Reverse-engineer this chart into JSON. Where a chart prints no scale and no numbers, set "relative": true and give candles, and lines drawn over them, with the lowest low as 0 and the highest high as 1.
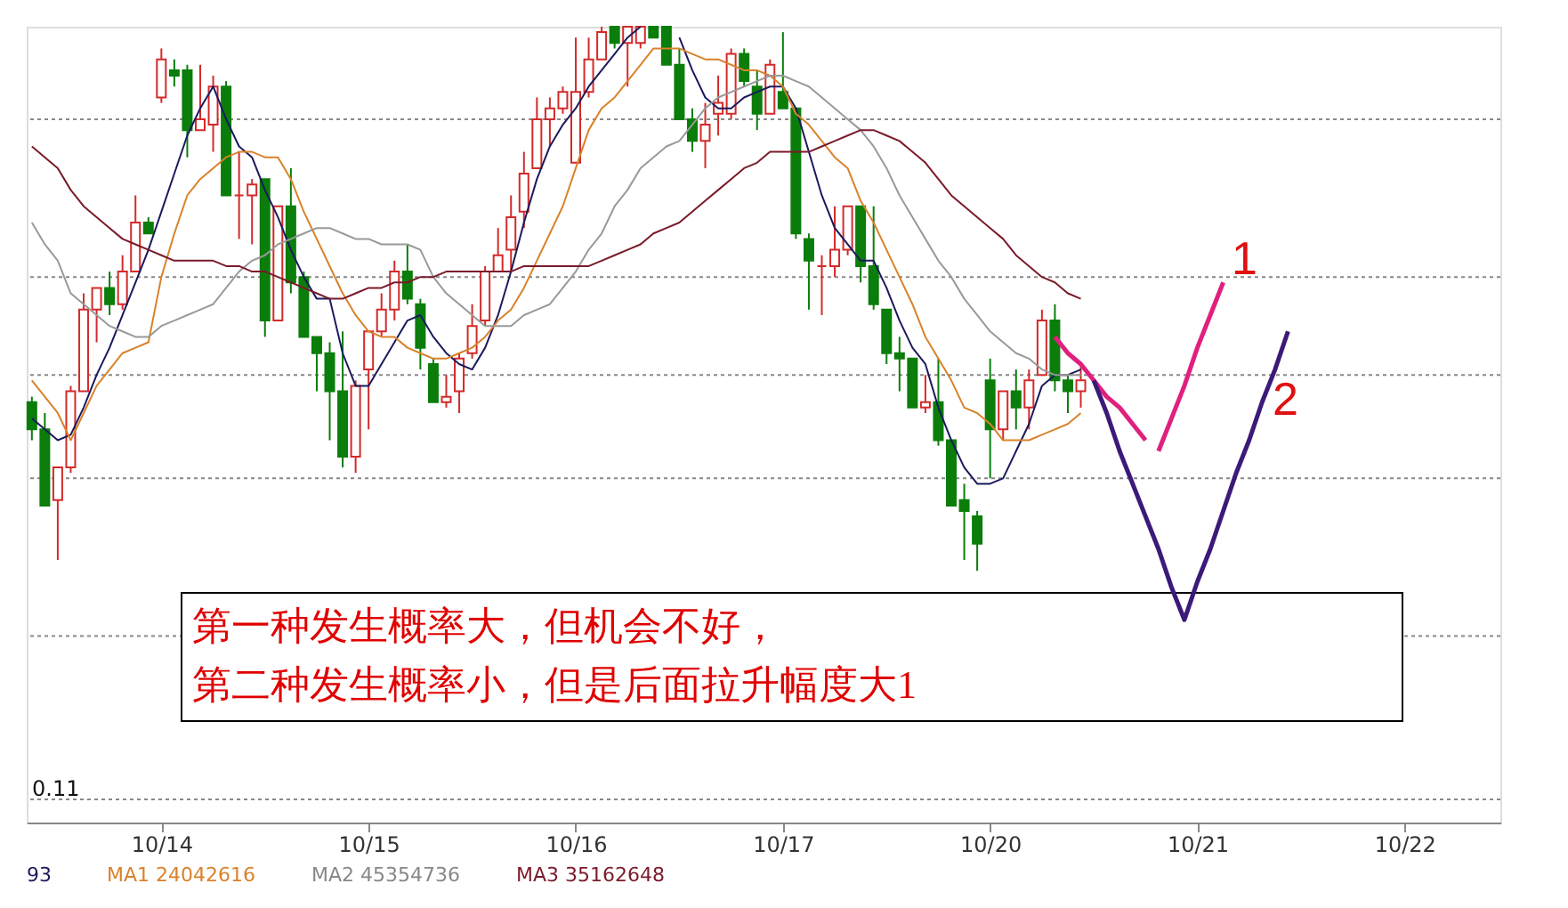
{
  "chart_data": {
    "type": "candlestick",
    "relative": true,
    "grid": false,
    "categories": [
      null,
      null,
      null,
      null,
      null,
      null,
      null,
      null,
      null,
      null,
      "10/14",
      null,
      null,
      null,
      null,
      null,
      null,
      null,
      null,
      null,
      null,
      null,
      null,
      null,
      null,
      null,
      "10/15",
      null,
      null,
      null,
      null,
      null,
      null,
      null,
      null,
      null,
      null,
      null,
      null,
      null,
      null,
      null,
      "10/16",
      null,
      null,
      null,
      null,
      null,
      null,
      null,
      null,
      null,
      null,
      null,
      null,
      null,
      null,
      null,
      "10/17",
      null,
      null,
      null,
      null,
      null,
      null,
      null,
      null,
      null,
      null,
      null,
      null,
      null,
      null,
      null,
      "10/20",
      null,
      null,
      null,
      null,
      null,
      null,
      null,
      null,
      null,
      null,
      null,
      null,
      null,
      null,
      null,
      "10/21",
      null,
      null,
      null,
      null,
      null,
      null,
      null,
      null,
      null,
      null,
      null,
      null,
      null,
      null,
      null,
      "10/22",
      null,
      null,
      null,
      null,
      null,
      null,
      null
    ],
    "ohlc": [
      [
        0.31,
        0.32,
        0.24,
        0.26
      ],
      [
        0.26,
        0.29,
        0.12,
        0.12
      ],
      [
        0.13,
        0.19,
        0.02,
        0.19
      ],
      [
        0.19,
        0.34,
        0.18,
        0.33
      ],
      [
        0.33,
        0.51,
        0.33,
        0.48
      ],
      [
        0.48,
        0.52,
        0.42,
        0.52
      ],
      [
        0.52,
        0.55,
        0.47,
        0.49
      ],
      [
        0.49,
        0.58,
        0.48,
        0.55
      ],
      [
        0.55,
        0.69,
        0.55,
        0.64
      ],
      [
        0.64,
        0.65,
        0.62,
        0.62
      ],
      [
        0.87,
        0.96,
        0.86,
        0.94
      ],
      [
        0.92,
        0.94,
        0.89,
        0.91
      ],
      [
        0.92,
        0.93,
        0.76,
        0.81
      ],
      [
        0.81,
        0.93,
        0.81,
        0.83
      ],
      [
        0.82,
        0.91,
        0.77,
        0.89
      ],
      [
        0.89,
        0.9,
        0.69,
        0.69
      ],
      [
        0.69,
        0.77,
        0.61,
        0.69
      ],
      [
        0.69,
        0.72,
        0.6,
        0.71
      ],
      [
        0.72,
        0.72,
        0.43,
        0.46
      ],
      [
        0.46,
        0.67,
        0.46,
        0.67
      ],
      [
        0.67,
        0.74,
        0.51,
        0.53
      ],
      [
        0.54,
        0.55,
        0.43,
        0.43
      ],
      [
        0.43,
        0.43,
        0.33,
        0.4
      ],
      [
        0.4,
        0.42,
        0.24,
        0.33
      ],
      [
        0.33,
        0.44,
        0.19,
        0.21
      ],
      [
        0.21,
        0.35,
        0.18,
        0.34
      ],
      [
        0.37,
        0.44,
        0.26,
        0.44
      ],
      [
        0.44,
        0.51,
        0.43,
        0.48
      ],
      [
        0.48,
        0.57,
        0.46,
        0.55
      ],
      [
        0.55,
        0.6,
        0.49,
        0.5
      ],
      [
        0.49,
        0.5,
        0.37,
        0.41
      ],
      [
        0.38,
        0.39,
        0.31,
        0.31
      ],
      [
        0.31,
        0.36,
        0.3,
        0.32
      ],
      [
        0.33,
        0.4,
        0.29,
        0.39
      ],
      [
        0.4,
        0.49,
        0.39,
        0.45
      ],
      [
        0.46,
        0.56,
        0.45,
        0.55
      ],
      [
        0.55,
        0.63,
        0.55,
        0.58
      ],
      [
        0.59,
        0.69,
        0.55,
        0.65
      ],
      [
        0.66,
        0.77,
        0.63,
        0.73
      ],
      [
        0.74,
        0.87,
        0.74,
        0.83
      ],
      [
        0.83,
        0.87,
        0.78,
        0.85
      ],
      [
        0.85,
        0.89,
        0.84,
        0.88
      ],
      [
        0.75,
        0.98,
        0.75,
        0.88
      ],
      [
        0.88,
        0.98,
        0.87,
        0.94
      ],
      [
        0.94,
        1.0,
        0.94,
        0.99
      ],
      [
        1.0,
        1.0,
        0.96,
        0.97
      ],
      [
        0.97,
        1.0,
        0.89,
        1.0
      ],
      [
        0.97,
        1.0,
        0.96,
        1.0
      ],
      [
        1.0,
        1.0,
        0.98,
        0.98
      ],
      [
        1.0,
        1.0,
        0.93,
        0.93
      ],
      [
        0.93,
        0.96,
        0.83,
        0.83
      ],
      [
        0.83,
        0.85,
        0.77,
        0.79
      ],
      [
        0.79,
        0.86,
        0.74,
        0.82
      ],
      [
        0.84,
        0.91,
        0.8,
        0.86
      ],
      [
        0.84,
        0.96,
        0.83,
        0.95
      ],
      [
        0.95,
        0.96,
        0.89,
        0.9
      ],
      [
        0.89,
        0.92,
        0.81,
        0.84
      ],
      [
        0.84,
        0.94,
        0.84,
        0.93
      ],
      [
        0.88,
        0.99,
        0.85,
        0.85
      ],
      [
        0.85,
        0.85,
        0.61,
        0.62
      ],
      [
        0.61,
        0.62,
        0.48,
        0.57
      ],
      [
        0.56,
        0.58,
        0.47,
        0.56
      ],
      [
        0.56,
        0.67,
        0.54,
        0.59
      ],
      [
        0.59,
        0.67,
        0.58,
        0.67
      ],
      [
        0.67,
        0.67,
        0.53,
        0.56
      ],
      [
        0.56,
        0.67,
        0.48,
        0.49
      ],
      [
        0.48,
        0.48,
        0.38,
        0.4
      ],
      [
        0.4,
        0.43,
        0.33,
        0.39
      ],
      [
        0.39,
        0.39,
        0.3,
        0.3
      ],
      [
        0.3,
        0.36,
        0.29,
        0.31
      ],
      [
        0.31,
        0.39,
        0.23,
        0.24
      ],
      [
        0.24,
        0.24,
        0.12,
        0.12
      ],
      [
        0.13,
        0.16,
        0.02,
        0.11
      ],
      [
        0.1,
        0.11,
        0.0,
        0.05
      ],
      [
        0.35,
        0.39,
        0.17,
        0.26
      ],
      [
        0.26,
        0.33,
        0.24,
        0.33
      ],
      [
        0.33,
        0.37,
        0.26,
        0.3
      ],
      [
        0.3,
        0.37,
        0.26,
        0.35
      ],
      [
        0.36,
        0.48,
        0.36,
        0.46
      ],
      [
        0.46,
        0.49,
        0.33,
        0.35
      ],
      [
        0.35,
        0.36,
        0.29,
        0.33
      ],
      [
        0.33,
        0.38,
        0.3,
        0.35
      ],
      null,
      null,
      null,
      null,
      null,
      null,
      null,
      null,
      null,
      null,
      null,
      null,
      null,
      null,
      null,
      null,
      null,
      null,
      null,
      null,
      null,
      null,
      null,
      null,
      null,
      null,
      null,
      null,
      null,
      null,
      null,
      null
    ],
    "colors": [
      "#0a7d0a",
      "#0a7d0a",
      "#d42a2a",
      "#d42a2a",
      "#d42a2a",
      "#d42a2a",
      "#0a7d0a",
      "#d42a2a",
      "#d42a2a",
      "#0a7d0a",
      "#d42a2a",
      "#0a7d0a",
      "#0a7d0a",
      "#d42a2a",
      "#d42a2a",
      "#0a7d0a",
      "#d42a2a",
      "#d42a2a",
      "#0a7d0a",
      "#d42a2a",
      "#0a7d0a",
      "#0a7d0a",
      "#0a7d0a",
      "#0a7d0a",
      "#0a7d0a",
      "#d42a2a",
      "#d42a2a",
      "#d42a2a",
      "#d42a2a",
      "#0a7d0a",
      "#0a7d0a",
      "#0a7d0a",
      "#d42a2a",
      "#d42a2a",
      "#d42a2a",
      "#d42a2a",
      "#d42a2a",
      "#d42a2a",
      "#d42a2a",
      "#d42a2a",
      "#d42a2a",
      "#d42a2a",
      "#d42a2a",
      "#d42a2a",
      "#d42a2a",
      "#0a7d0a",
      "#d42a2a",
      "#d42a2a",
      "#0a7d0a",
      "#0a7d0a",
      "#0a7d0a",
      "#0a7d0a",
      "#d42a2a",
      "#d42a2a",
      "#d42a2a",
      "#0a7d0a",
      "#0a7d0a",
      "#d42a2a",
      "#0a7d0a",
      "#0a7d0a",
      "#0a7d0a",
      "#d42a2a",
      "#d42a2a",
      "#d42a2a",
      "#0a7d0a",
      "#0a7d0a",
      "#0a7d0a",
      "#0a7d0a",
      "#0a7d0a",
      "#d42a2a",
      "#0a7d0a",
      "#0a7d0a",
      "#0a7d0a",
      "#0a7d0a",
      "#0a7d0a",
      "#d42a2a",
      "#0a7d0a",
      "#d42a2a",
      "#d42a2a",
      "#0a7d0a",
      "#0a7d0a",
      "#d42a2a",
      null,
      null,
      null,
      null,
      null,
      null,
      null,
      null,
      null,
      null,
      null,
      null,
      null,
      null,
      null,
      null,
      null,
      null,
      null,
      null,
      null,
      null,
      null,
      null,
      null,
      null,
      null,
      null,
      null,
      null,
      null,
      null
    ],
    "series": [
      {
        "type": "line",
        "color": "#1a1a5e",
        "values": [
          0.28,
          0.26,
          0.24,
          0.25,
          0.3,
          0.36,
          0.41,
          0.47,
          0.53,
          0.59,
          0.66,
          0.73,
          0.8,
          0.85,
          0.89,
          0.83,
          0.78,
          0.76,
          0.7,
          0.65,
          0.59,
          0.54,
          0.5,
          0.5,
          0.4,
          0.34,
          0.34,
          0.38,
          0.42,
          0.46,
          0.47,
          0.43,
          0.4,
          0.38,
          0.37,
          0.41,
          0.47,
          0.55,
          0.64,
          0.72,
          0.78,
          0.82,
          0.85,
          0.89,
          0.92,
          0.95,
          0.98,
          1.0,
          null,
          null,
          0.98,
          0.92,
          0.87,
          0.85,
          0.85,
          0.87,
          0.88,
          0.89,
          0.89,
          0.85,
          0.77,
          0.69,
          0.63,
          0.6,
          0.57,
          0.57,
          0.52,
          0.46,
          0.41,
          0.38,
          0.3,
          0.24,
          0.19,
          0.16,
          0.16,
          0.17,
          0.22,
          0.27,
          0.34,
          0.36,
          0.36,
          0.37,
          null,
          null,
          null,
          null,
          null,
          null,
          null,
          null,
          null,
          null,
          null,
          null,
          null,
          null,
          null,
          null,
          null,
          null,
          null,
          null,
          null,
          null,
          null,
          null,
          null,
          null,
          null,
          null,
          null,
          null,
          null,
          null
        ]
      },
      {
        "type": "line",
        "color": "#d9822b",
        "values": [
          0.35,
          0.32,
          0.29,
          0.24,
          0.29,
          0.34,
          0.37,
          0.4,
          0.41,
          0.42,
          0.54,
          0.62,
          0.69,
          0.72,
          0.74,
          0.76,
          0.77,
          0.77,
          0.76,
          0.76,
          0.72,
          0.66,
          0.61,
          0.56,
          0.51,
          0.47,
          0.44,
          0.43,
          0.43,
          0.41,
          0.4,
          0.39,
          0.39,
          0.4,
          0.41,
          0.43,
          0.46,
          0.48,
          0.52,
          0.57,
          0.62,
          0.67,
          0.74,
          0.81,
          0.85,
          0.87,
          0.9,
          0.93,
          0.96,
          0.96,
          0.96,
          0.95,
          0.94,
          0.94,
          0.93,
          0.92,
          0.92,
          0.91,
          0.89,
          0.84,
          0.82,
          0.79,
          0.76,
          0.74,
          0.68,
          0.64,
          0.59,
          0.54,
          0.49,
          0.43,
          0.39,
          0.35,
          0.3,
          0.29,
          0.27,
          0.24,
          0.24,
          0.24,
          0.25,
          0.26,
          0.27,
          0.29,
          null,
          null,
          null,
          null,
          null,
          null,
          null,
          null,
          null,
          null,
          null,
          null,
          null,
          null,
          null,
          null,
          null,
          null,
          null,
          null,
          null,
          null,
          null,
          null,
          null,
          null,
          null,
          null,
          null,
          null,
          null,
          null
        ]
      },
      {
        "type": "line",
        "color": "#999999",
        "values": [
          0.64,
          0.6,
          0.57,
          0.51,
          0.49,
          0.47,
          0.45,
          0.44,
          0.43,
          0.43,
          0.45,
          0.46,
          0.47,
          0.48,
          0.49,
          0.52,
          0.55,
          0.57,
          0.58,
          0.6,
          0.61,
          0.62,
          0.63,
          0.63,
          0.62,
          0.61,
          0.61,
          0.6,
          0.6,
          0.6,
          0.59,
          0.54,
          0.51,
          0.49,
          0.47,
          0.45,
          0.45,
          0.45,
          0.47,
          0.48,
          0.49,
          0.52,
          0.55,
          0.59,
          0.62,
          0.67,
          0.7,
          0.74,
          0.76,
          0.78,
          0.79,
          0.82,
          0.85,
          0.87,
          0.88,
          0.89,
          0.9,
          0.91,
          0.91,
          0.9,
          0.89,
          0.87,
          0.85,
          0.83,
          0.81,
          0.78,
          0.74,
          0.69,
          0.65,
          0.61,
          0.57,
          0.54,
          0.5,
          0.47,
          0.44,
          0.42,
          0.4,
          0.39,
          0.37,
          0.36,
          0.36,
          0.36,
          null,
          null,
          null,
          null,
          null,
          null,
          null,
          null,
          null,
          null,
          null,
          null,
          null,
          null,
          null,
          null,
          null,
          null,
          null,
          null,
          null,
          null,
          null,
          null,
          null,
          null,
          null,
          null,
          null,
          null,
          null,
          null
        ]
      },
      {
        "type": "line",
        "color": "#7a1a2a",
        "values": [
          0.78,
          0.76,
          0.74,
          0.7,
          0.67,
          0.65,
          0.63,
          0.61,
          0.6,
          0.59,
          0.58,
          0.57,
          0.57,
          0.57,
          0.57,
          0.56,
          0.56,
          0.55,
          0.55,
          0.54,
          0.53,
          0.52,
          0.51,
          0.5,
          0.5,
          0.51,
          0.52,
          0.52,
          0.53,
          0.53,
          0.54,
          0.54,
          0.55,
          0.55,
          0.55,
          0.55,
          0.55,
          0.55,
          0.56,
          0.56,
          0.56,
          0.56,
          0.56,
          0.56,
          0.57,
          0.58,
          0.59,
          0.6,
          0.62,
          0.63,
          0.64,
          0.66,
          0.68,
          0.7,
          0.72,
          0.74,
          0.75,
          0.77,
          0.77,
          0.77,
          0.77,
          0.78,
          0.79,
          0.8,
          0.81,
          0.81,
          0.8,
          0.79,
          0.77,
          0.75,
          0.72,
          0.69,
          0.67,
          0.65,
          0.63,
          0.61,
          0.58,
          0.56,
          0.54,
          0.53,
          0.51,
          0.5,
          null,
          null,
          null,
          null,
          null,
          null,
          null,
          null,
          null,
          null,
          null,
          null,
          null,
          null,
          null,
          null,
          null,
          null,
          null,
          null,
          null,
          null,
          null,
          null,
          null,
          null,
          null,
          null,
          null,
          null,
          null,
          null
        ]
      },
      {
        "type": "line",
        "color": "#e0207f",
        "values": [
          null,
          null,
          null,
          null,
          null,
          null,
          null,
          null,
          null,
          null,
          null,
          null,
          null,
          null,
          null,
          null,
          null,
          null,
          null,
          null,
          null,
          null,
          null,
          null,
          null,
          null,
          null,
          null,
          null,
          null,
          null,
          null,
          null,
          null,
          null,
          null,
          null,
          null,
          null,
          null,
          null,
          null,
          null,
          null,
          null,
          null,
          null,
          null,
          null,
          null,
          null,
          null,
          null,
          null,
          null,
          null,
          null,
          null,
          null,
          null,
          null,
          null,
          null,
          null,
          null,
          null,
          null,
          null,
          null,
          null,
          null,
          null,
          null,
          null,
          null,
          null,
          null,
          null,
          null,
          0.43,
          0.4,
          0.38,
          0.35,
          0.32,
          0.3,
          0.27,
          0.24,
          null,
          null,
          null,
          null,
          null,
          null,
          null,
          null,
          null,
          null,
          null,
          null,
          null,
          null,
          null,
          null,
          null,
          null,
          null,
          null,
          null,
          null,
          null,
          null,
          null,
          null,
          null
        ]
      },
      {
        "type": "line",
        "color": "#e0207f",
        "values": [
          null,
          null,
          null,
          null,
          null,
          null,
          null,
          null,
          null,
          null,
          null,
          null,
          null,
          null,
          null,
          null,
          null,
          null,
          null,
          null,
          null,
          null,
          null,
          null,
          null,
          null,
          null,
          null,
          null,
          null,
          null,
          null,
          null,
          null,
          null,
          null,
          null,
          null,
          null,
          null,
          null,
          null,
          null,
          null,
          null,
          null,
          null,
          null,
          null,
          null,
          null,
          null,
          null,
          null,
          null,
          null,
          null,
          null,
          null,
          null,
          null,
          null,
          null,
          null,
          null,
          null,
          null,
          null,
          null,
          null,
          null,
          null,
          null,
          null,
          null,
          null,
          null,
          null,
          null,
          null,
          null,
          null,
          null,
          null,
          null,
          null,
          null,
          0.22,
          0.28,
          0.34,
          0.41,
          0.47,
          0.53,
          null,
          null,
          null,
          null,
          null,
          null,
          null,
          null,
          null,
          null,
          null,
          null,
          null,
          null,
          null,
          null,
          null,
          null,
          null,
          null,
          null
        ]
      },
      {
        "type": "line",
        "color": "#3b1a7a",
        "values": [
          null,
          null,
          null,
          null,
          null,
          null,
          null,
          null,
          null,
          null,
          null,
          null,
          null,
          null,
          null,
          null,
          null,
          null,
          null,
          null,
          null,
          null,
          null,
          null,
          null,
          null,
          null,
          null,
          null,
          null,
          null,
          null,
          null,
          null,
          null,
          null,
          null,
          null,
          null,
          null,
          null,
          null,
          null,
          null,
          null,
          null,
          null,
          null,
          null,
          null,
          null,
          null,
          null,
          null,
          null,
          null,
          null,
          null,
          null,
          null,
          null,
          null,
          null,
          null,
          null,
          null,
          null,
          null,
          null,
          null,
          null,
          null,
          null,
          null,
          null,
          null,
          null,
          null,
          null,
          null,
          null,
          null,
          0.35,
          0.29,
          0.22,
          0.16,
          0.1,
          0.04,
          -0.03,
          -0.09,
          -0.02,
          0.04,
          0.11,
          0.18,
          0.24,
          0.31,
          0.37,
          0.44,
          null,
          null,
          null,
          null,
          null,
          null,
          null,
          null,
          null,
          null,
          null,
          null,
          null,
          null,
          null,
          null
        ]
      }
    ],
    "ref_lines": [
      {
        "axis": "y",
        "value": 0.83,
        "color": "#888888",
        "line_style": "dotted"
      },
      {
        "axis": "y",
        "value": 0.54,
        "color": "#888888",
        "line_style": "dotted"
      },
      {
        "axis": "y",
        "value": 0.36,
        "color": "#888888",
        "line_style": "dotted"
      },
      {
        "axis": "y",
        "value": 0.17,
        "color": "#888888",
        "line_style": "dotted"
      },
      {
        "axis": "y",
        "value": -0.12,
        "color": "#888888",
        "line_style": "dotted"
      },
      {
        "axis": "y",
        "value": -0.42,
        "color": "#888888",
        "line_style": "dotted"
      }
    ],
    "annotations": [
      "第一种发生概率大，但机会不好，",
      "第二种发生概率小，但是后面拉升幅度大1",
      "1",
      "2",
      "0.11",
      "93",
      "MA1 24042616",
      "MA2 45354736",
      "MA3 35162648"
    ]
  }
}
